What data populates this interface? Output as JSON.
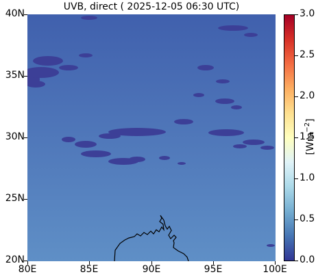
{
  "title": "UVB, direct ( 2025-12-05 06:30 UTC)",
  "map": {
    "lon_range": [
      80,
      100
    ],
    "lat_range": [
      20,
      40
    ],
    "xticks": [
      "80E",
      "85E",
      "90E",
      "95E",
      "100E"
    ],
    "yticks": [
      "40N",
      "35N",
      "30N",
      "25N",
      "20N"
    ],
    "field_colors": {
      "north": "#4060ad",
      "south": "#5f8fc6",
      "cloud": "#3c3f97"
    }
  },
  "colorbar": {
    "label_base": "[Wm",
    "label_exp": "−2",
    "label_end": "]",
    "ticks": [
      "3.0",
      "2.5",
      "2.0",
      "1.5",
      "1.0",
      "0.5",
      "0.0"
    ],
    "range": [
      0.0,
      3.0
    ],
    "colormap": [
      "#313695",
      "#4575b4",
      "#74add1",
      "#abd9e9",
      "#e0f3f8",
      "#ffffbf",
      "#fee090",
      "#fdae61",
      "#f46d43",
      "#d73027",
      "#a50026"
    ]
  }
}
